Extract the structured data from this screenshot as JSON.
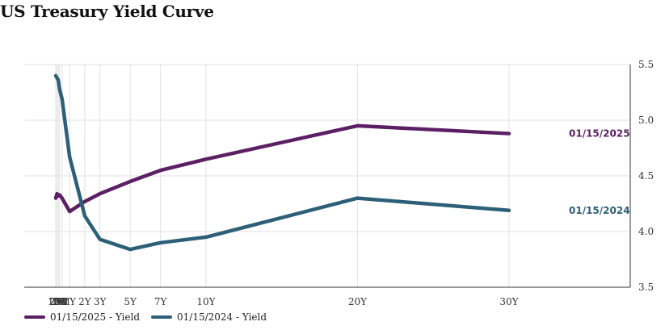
{
  "title": "US Treasury Yield Curve",
  "chart_data": {
    "type": "line",
    "title": "US Treasury Yield Curve",
    "xlabel": "",
    "ylabel": "",
    "categories": [
      "1M",
      "2M",
      "3M",
      "4M",
      "6M",
      "1Y",
      "2Y",
      "3Y",
      "5Y",
      "7Y",
      "10Y",
      "20Y",
      "30Y"
    ],
    "x_years": [
      0.0833,
      0.1667,
      0.25,
      0.3333,
      0.5,
      1,
      2,
      3,
      5,
      7,
      10,
      20,
      30
    ],
    "y_ticks": [
      "3.5",
      "4.0",
      "4.5",
      "5.0",
      "5.5"
    ],
    "ylim": [
      3.5,
      5.5
    ],
    "y_axis_side": "right",
    "grid": true,
    "legend_position": "bottom-left",
    "series": [
      {
        "name": "01/15/2025 - Yield",
        "end_label": "01/15/2025",
        "color": "#5b1f63",
        "values": [
          4.3,
          4.34,
          4.32,
          4.33,
          4.3,
          4.18,
          4.27,
          4.34,
          4.45,
          4.55,
          4.65,
          4.95,
          4.88
        ]
      },
      {
        "name": "01/15/2024 - Yield",
        "end_label": "01/15/2024",
        "color": "#2d5f78",
        "values": [
          5.4,
          5.38,
          5.36,
          5.28,
          5.19,
          4.67,
          4.14,
          3.93,
          3.84,
          3.9,
          3.95,
          4.3,
          4.19
        ]
      }
    ]
  }
}
